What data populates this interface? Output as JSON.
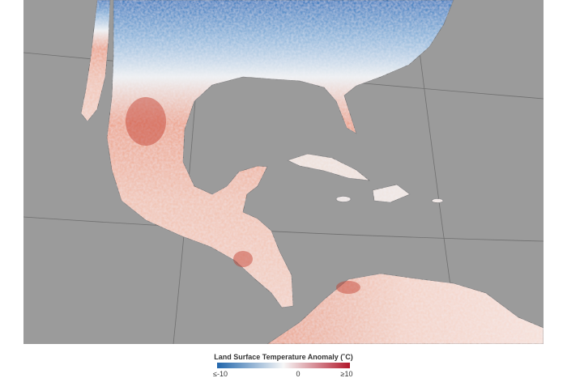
{
  "legend": {
    "title": "Land Surface Temperature Anomaly (˚C)",
    "labels": [
      "≤-10",
      "0",
      "≥10"
    ]
  }
}
